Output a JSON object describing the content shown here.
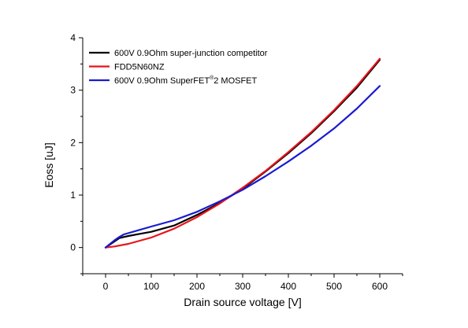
{
  "chart_data": {
    "type": "line",
    "title": "",
    "xlabel": "Drain source voltage [V]",
    "ylabel": "Eoss [uJ]",
    "xlim": [
      -50,
      650
    ],
    "ylim": [
      -0.5,
      4
    ],
    "x_ticks": [
      0,
      100,
      200,
      300,
      400,
      500,
      600
    ],
    "y_ticks": [
      0,
      1,
      2,
      3,
      4
    ],
    "grid": false,
    "legend_position": "top-left",
    "series": [
      {
        "name": "600V 0.9Ohm super-junction competitor",
        "color": "#000000",
        "x": [
          0,
          10,
          20,
          30,
          40,
          50,
          75,
          100,
          150,
          200,
          250,
          300,
          350,
          400,
          450,
          500,
          550,
          600
        ],
        "y": [
          0,
          0.06,
          0.12,
          0.18,
          0.2,
          0.22,
          0.26,
          0.3,
          0.42,
          0.62,
          0.85,
          1.12,
          1.45,
          1.8,
          2.18,
          2.6,
          3.05,
          3.58
        ]
      },
      {
        "name": "FDD5N60NZ",
        "color": "#e8141c",
        "x": [
          0,
          20,
          50,
          100,
          150,
          200,
          250,
          300,
          350,
          400,
          450,
          500,
          550,
          600
        ],
        "y": [
          0,
          0.02,
          0.07,
          0.19,
          0.36,
          0.58,
          0.84,
          1.14,
          1.46,
          1.82,
          2.2,
          2.62,
          3.08,
          3.6
        ]
      },
      {
        "name": "600V 0.9Ohm SuperFET®2 MOSFET",
        "name_main": "600V 0.9Ohm SuperFET",
        "name_sup": "®",
        "name_tail": "2 MOSFET",
        "color": "#1a1ad2",
        "x": [
          0,
          10,
          20,
          30,
          40,
          60,
          100,
          150,
          200,
          250,
          300,
          350,
          400,
          450,
          500,
          550,
          600
        ],
        "y": [
          0,
          0.07,
          0.14,
          0.2,
          0.25,
          0.3,
          0.4,
          0.52,
          0.68,
          0.88,
          1.1,
          1.36,
          1.64,
          1.94,
          2.27,
          2.65,
          3.08
        ]
      }
    ]
  }
}
